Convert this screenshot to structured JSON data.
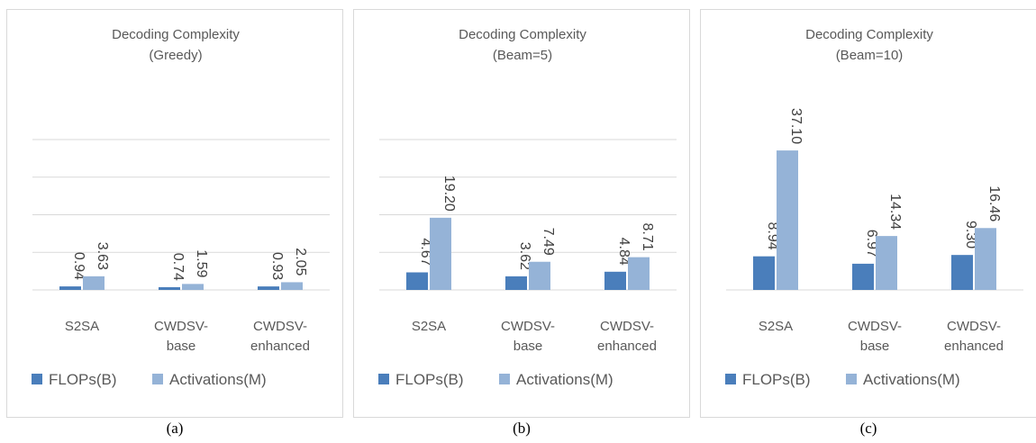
{
  "colors": {
    "flops": "#4a7ebb",
    "activations": "#95b3d7",
    "grid": "#d9d9d9",
    "text": "#595959"
  },
  "chart_data": [
    {
      "type": "bar",
      "title": [
        "Decoding Complexity",
        "(Greedy)"
      ],
      "categories": [
        [
          "S2SA"
        ],
        [
          "CWDSV-",
          "base"
        ],
        [
          "CWDSV-",
          "enhanced"
        ]
      ],
      "series": [
        {
          "name": "FLOPs(B)",
          "values": [
            0.94,
            0.74,
            0.93
          ],
          "labels": [
            "0.94",
            "0.74",
            "0.93"
          ]
        },
        {
          "name": "Activations(M)",
          "values": [
            3.63,
            1.59,
            2.05
          ],
          "labels": [
            "3.63",
            "1.59",
            "2.05"
          ]
        }
      ],
      "ylim": [
        0,
        40
      ],
      "grid": true,
      "axis_labels_shown": false,
      "legend": "bottom",
      "caption": "(a)"
    },
    {
      "type": "bar",
      "title": [
        "Decoding Complexity",
        "(Beam=5)"
      ],
      "categories": [
        [
          "S2SA"
        ],
        [
          "CWDSV-",
          "base"
        ],
        [
          "CWDSV-",
          "enhanced"
        ]
      ],
      "series": [
        {
          "name": "FLOPs(B)",
          "values": [
            4.67,
            3.62,
            4.84
          ],
          "labels": [
            "4.67",
            "3.62",
            "4.84"
          ]
        },
        {
          "name": "Activations(M)",
          "values": [
            19.2,
            7.49,
            8.71
          ],
          "labels": [
            "19.20",
            "7.49",
            "8.71"
          ]
        }
      ],
      "ylim": [
        0,
        40
      ],
      "grid": true,
      "axis_labels_shown": false,
      "legend": "bottom",
      "caption": "(b)"
    },
    {
      "type": "bar",
      "title": [
        "Decoding Complexity",
        "(Beam=10)"
      ],
      "categories": [
        [
          "S2SA"
        ],
        [
          "CWDSV-",
          "base"
        ],
        [
          "CWDSV-",
          "enhanced"
        ]
      ],
      "series": [
        {
          "name": "FLOPs(B)",
          "values": [
            8.94,
            6.97,
            9.3
          ],
          "labels": [
            "8.94",
            "6.97",
            "9.30"
          ]
        },
        {
          "name": "Activations(M)",
          "values": [
            37.1,
            14.34,
            16.46
          ],
          "labels": [
            "37.10",
            "14.34",
            "16.46"
          ]
        }
      ],
      "ylim": [
        0,
        40
      ],
      "grid": false,
      "axis_labels_shown": false,
      "legend": "bottom",
      "caption": "(c)"
    }
  ]
}
